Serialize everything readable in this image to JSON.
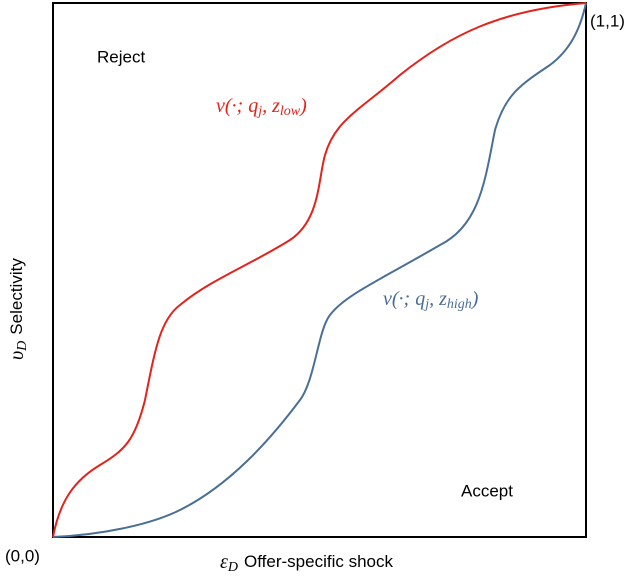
{
  "regions": {
    "top": "Reject",
    "bottom": "Accept"
  },
  "corners": {
    "origin": "(0,0)",
    "top_right": "(1,1)"
  },
  "axes": {
    "x": {
      "symbol": "ε",
      "sub": "D",
      "label": "Offer-specific shock"
    },
    "y": {
      "symbol": "υ",
      "sub": "D",
      "label": "Selectivity"
    }
  },
  "curves": {
    "low": {
      "main": "v(·; q",
      "sub1": "j",
      "mid": ", z",
      "sub2": "low",
      "end": ")"
    },
    "high": {
      "main": "v(·; q",
      "sub1": "j",
      "mid": ", z",
      "sub2": "high",
      "end": ")"
    }
  }
}
